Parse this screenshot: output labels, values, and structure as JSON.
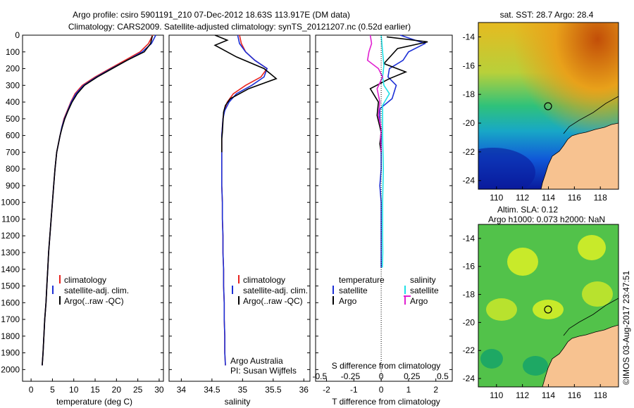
{
  "header": {
    "title1": "Argo profile: csiro 5901191_210 07-Dec-2012 18.63S 113.917E (DM data)",
    "title2": "Climatology: CARS2009. Satellite-adjusted climatology: synTS_20121207.nc (0.52d earlier)"
  },
  "colors": {
    "climatology": "#e8231e",
    "satellite": "#1c2fd6",
    "argo": "#000000",
    "sal_satellite": "#20e0e6",
    "sal_argo": "#e020d0",
    "land": "#f7c290"
  },
  "depth_ticks": [
    "0",
    "100",
    "200",
    "300",
    "400",
    "500",
    "600",
    "700",
    "800",
    "900",
    "1000",
    "1100",
    "1200",
    "1300",
    "1400",
    "1500",
    "1600",
    "1700",
    "1800",
    "1900",
    "2000"
  ],
  "panel_temperature": {
    "xlabel": "temperature (deg C)",
    "xticks": [
      "0",
      "5",
      "10",
      "15",
      "20",
      "25",
      "30"
    ],
    "legend": [
      "climatology",
      "satellite-adj. clim.",
      "Argo(..raw -QC)"
    ]
  },
  "panel_salinity": {
    "xlabel": "salinity",
    "xticks": [
      "34",
      "34.5",
      "35",
      "35.5",
      "36"
    ],
    "legend": [
      "climatology",
      "satellite-adj. clim.",
      "Argo(..raw -QC)"
    ],
    "note1": "Argo Australia",
    "note2": "PI: Susan Wijffels"
  },
  "panel_difference": {
    "top_label": "S difference from climatology",
    "top_ticks": [
      "-0.5",
      "-0.25",
      "0",
      "0.25",
      "0.5"
    ],
    "xlabel": "T difference from climatology",
    "xticks": [
      "-2",
      "-1",
      "0",
      "1",
      "2"
    ],
    "legend_temp_title": "temperature",
    "legend_sal_title": "salinity",
    "legend_temp": [
      "satellite",
      "Argo"
    ],
    "legend_sal": [
      "satellite",
      "Argo"
    ]
  },
  "map_sst": {
    "title": "sat. SST: 28.7  Argo: 28.4",
    "yticks": [
      "-14",
      "-16",
      "-18",
      "-20",
      "-22",
      "-24"
    ],
    "xticks": [
      "110",
      "112",
      "114",
      "116",
      "118"
    ]
  },
  "map_sla": {
    "title1": "Altim. SLA: 0.12",
    "title2": "Argo h1000: 0.073 h2000: NaN",
    "yticks": [
      "-14",
      "-16",
      "-18",
      "-20",
      "-22",
      "-24"
    ],
    "xticks": [
      "110",
      "112",
      "114",
      "116",
      "118"
    ]
  },
  "footer": {
    "credit": "©IMOS 03-Aug-2017 23:47:51"
  },
  "chart_data": [
    {
      "type": "line",
      "title": "Argo profile: csiro 5901191_210 07-Dec-2012 18.63S 113.917E (DM data)",
      "xlabel": "temperature (deg C)",
      "ylabel": "",
      "xlim": [
        -2,
        31
      ],
      "ylim": [
        2070,
        0
      ],
      "series": [
        {
          "name": "climatology",
          "x": [
            28.5,
            27.5,
            25.5,
            22,
            18.5,
            15,
            12,
            10.3,
            9.3,
            8.5,
            7.7,
            7.2,
            6.8,
            6.4,
            6.0,
            5.6,
            5.3,
            5.0,
            4.7,
            4.4,
            4.1,
            3.9,
            3.7,
            3.5,
            3.2,
            3.0,
            2.8,
            2.6
          ],
          "y": [
            0,
            50,
            100,
            150,
            200,
            250,
            300,
            350,
            400,
            450,
            500,
            550,
            600,
            650,
            700,
            800,
            900,
            1000,
            1100,
            1200,
            1300,
            1400,
            1500,
            1600,
            1700,
            1800,
            1900,
            1975
          ]
        },
        {
          "name": "satellite-adj. clim.",
          "x": [
            29.2,
            28.2,
            26,
            22.5,
            18.8,
            15.3,
            12.3,
            10.5,
            9.4,
            8.6,
            7.8,
            7.2,
            6.8,
            6.4,
            6.0,
            5.6,
            5.3,
            5.0,
            4.7,
            4.4,
            4.1,
            3.9,
            3.7,
            3.5,
            3.2,
            3.0,
            2.8,
            2.6
          ],
          "y": [
            0,
            50,
            100,
            150,
            200,
            250,
            300,
            350,
            400,
            450,
            500,
            550,
            600,
            650,
            700,
            800,
            900,
            1000,
            1100,
            1200,
            1300,
            1400,
            1500,
            1600,
            1700,
            1800,
            1900,
            1975
          ]
        },
        {
          "name": "Argo(..raw -QC)",
          "x": [
            28.4,
            28,
            26.5,
            22.5,
            19,
            15.5,
            12.5,
            10.8,
            9.6,
            8.7,
            7.9,
            7.3,
            6.8,
            6.4,
            6.0,
            5.6,
            5.3,
            5.0,
            4.7,
            4.4,
            4.1,
            3.9,
            3.7,
            3.5,
            3.2,
            3.0,
            2.8,
            2.6
          ],
          "y": [
            5,
            50,
            100,
            150,
            200,
            250,
            300,
            350,
            400,
            450,
            500,
            550,
            600,
            650,
            700,
            800,
            900,
            1000,
            1100,
            1200,
            1300,
            1400,
            1500,
            1600,
            1700,
            1800,
            1900,
            1975
          ]
        }
      ]
    },
    {
      "type": "line",
      "xlabel": "salinity",
      "ylabel": "",
      "xlim": [
        33.8,
        36.1
      ],
      "ylim": [
        2070,
        0
      ],
      "series": [
        {
          "name": "climatology",
          "x": [
            34.95,
            34.98,
            35.05,
            35.2,
            35.4,
            35.3,
            35.05,
            34.85,
            34.75,
            34.7,
            34.68,
            34.67,
            34.66,
            34.66,
            34.66,
            34.66,
            34.66,
            34.67,
            34.67,
            34.68,
            34.68,
            34.69,
            34.69,
            34.7,
            34.7,
            34.71,
            34.71,
            34.72
          ],
          "y": [
            0,
            50,
            100,
            150,
            200,
            250,
            300,
            350,
            400,
            450,
            500,
            550,
            600,
            650,
            700,
            800,
            900,
            1000,
            1100,
            1200,
            1300,
            1400,
            1500,
            1600,
            1700,
            1800,
            1900,
            1975
          ]
        },
        {
          "name": "satellite-adj. clim.",
          "x": [
            34.92,
            34.95,
            35.05,
            35.2,
            35.4,
            35.35,
            35.15,
            34.9,
            34.78,
            34.71,
            34.68,
            34.67,
            34.66,
            34.66,
            34.66,
            34.66,
            34.66,
            34.67,
            34.67,
            34.68,
            34.68,
            34.69,
            34.69,
            34.7,
            34.7,
            34.71,
            34.71,
            34.72
          ],
          "y": [
            0,
            50,
            100,
            150,
            200,
            250,
            300,
            350,
            400,
            450,
            500,
            550,
            600,
            650,
            700,
            800,
            900,
            1000,
            1100,
            1200,
            1300,
            1400,
            1500,
            1600,
            1700,
            1800,
            1900,
            1975
          ]
        },
        {
          "name": "Argo(..raw -QC)",
          "x": [
            34.55,
            34.75,
            34.55,
            34.9,
            35.35,
            35.55,
            35.1,
            34.8,
            34.72,
            34.69,
            34.68,
            34.67,
            34.66,
            34.66,
            34.66
          ],
          "y": [
            0,
            30,
            60,
            130,
            200,
            260,
            320,
            380,
            420,
            460,
            520,
            580,
            620,
            660,
            700
          ]
        }
      ]
    },
    {
      "type": "line",
      "xlabel": "T difference from climatology",
      "ylabel": "",
      "xlim": [
        -2.4,
        2.6
      ],
      "ylim": [
        2070,
        0
      ],
      "series": [
        {
          "name": "temperature satellite",
          "x": [
            0.7,
            1.6,
            1.0,
            0.8,
            0.3,
            0.25,
            0.55,
            0.4,
            -0.05,
            -0.05,
            0,
            0,
            0,
            -0.05,
            0,
            0,
            0,
            0
          ],
          "y": [
            0,
            50,
            100,
            150,
            200,
            250,
            300,
            380,
            440,
            500,
            600,
            700,
            800,
            900,
            1000,
            1100,
            1200,
            1390
          ]
        },
        {
          "name": "temperature Argo",
          "x": [
            0.2,
            1.7,
            0.6,
            0.1,
            0.9,
            0.3,
            -0.4,
            -0.1,
            -0.15,
            0,
            -0.05,
            0
          ],
          "y": [
            10,
            40,
            80,
            170,
            220,
            260,
            320,
            400,
            480,
            580,
            650,
            700
          ]
        },
        {
          "name": "salinity satellite",
          "x": [
            0,
            0.05,
            0.1,
            0.05,
            0.1,
            0.3,
            0.05,
            0.05,
            0.08,
            0.05,
            0.05,
            0.06,
            0.04
          ],
          "y": [
            0,
            100,
            180,
            250,
            300,
            350,
            420,
            600,
            800,
            1000,
            1200,
            1300,
            1390
          ]
        },
        {
          "name": "salinity Argo",
          "x": [
            -0.4,
            -0.35,
            -0.45,
            -0.5,
            -0.1,
            0.05,
            -0.15,
            -0.05,
            -0.1,
            0,
            -0.02,
            0
          ],
          "y": [
            0,
            50,
            100,
            150,
            200,
            250,
            320,
            400,
            480,
            560,
            620,
            700
          ]
        }
      ]
    },
    {
      "type": "heatmap",
      "title": "sat. SST: 28.7  Argo: 28.4",
      "xlim": [
        108.6,
        119.4
      ],
      "ylim": [
        -24.6,
        -13.0
      ],
      "point": {
        "lon": 113.917,
        "lat": -18.63
      }
    },
    {
      "type": "heatmap",
      "title": "Altim. SLA: 0.12",
      "xlim": [
        108.6,
        119.4
      ],
      "ylim": [
        -24.6,
        -13.0
      ],
      "point": {
        "lon": 113.917,
        "lat": -18.63
      }
    }
  ]
}
